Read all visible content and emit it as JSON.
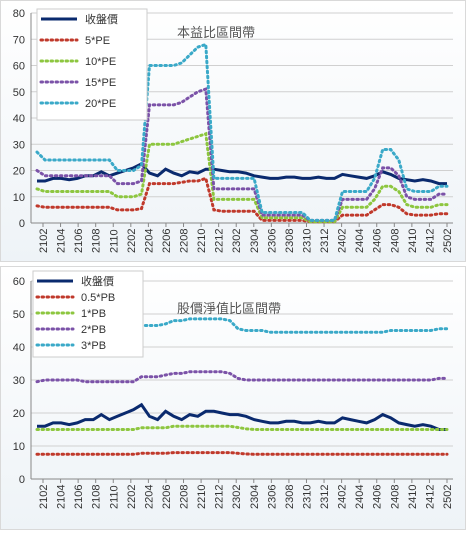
{
  "chart_data": [
    {
      "type": "line",
      "title": "本益比區間帶",
      "ylim": [
        0,
        80
      ],
      "yticks": [
        0,
        10,
        20,
        30,
        40,
        50,
        60,
        70,
        80
      ],
      "x_tick_labels": [
        "2102",
        "2104",
        "2106",
        "2108",
        "2110",
        "2202",
        "2204",
        "2206",
        "2208",
        "2210",
        "2212",
        "2302",
        "2304",
        "2306",
        "2308",
        "2310",
        "2312",
        "2402",
        "2404",
        "2406",
        "2408",
        "2410",
        "2412",
        "2502"
      ],
      "grid": true,
      "legend": "top-left",
      "series": [
        {
          "name": "收盤價",
          "color": "#0a2a6e",
          "style": "solid",
          "values": [
            16,
            16,
            17,
            17,
            16.5,
            17,
            18,
            18,
            19.5,
            18,
            19,
            20,
            21,
            22.5,
            19,
            18,
            20.5,
            19,
            18,
            19.5,
            19,
            20.5,
            20.5,
            20,
            19.5,
            19.5,
            19,
            18,
            17.5,
            17,
            17,
            17.5,
            17.5,
            17,
            17,
            17.5,
            17,
            17,
            18.5,
            18,
            17.5,
            17,
            18,
            19.5,
            18.5,
            17,
            16.5,
            16,
            16.5,
            16,
            15,
            15
          ]
        },
        {
          "name": "5*PE",
          "color": "#c0392b",
          "style": "dotted",
          "values": [
            6.5,
            6,
            6,
            6,
            6,
            6,
            6,
            6,
            6,
            6,
            5,
            5,
            5,
            5.5,
            15,
            15,
            15,
            15,
            15.5,
            16,
            16,
            17,
            5,
            4.5,
            4.5,
            4.5,
            4.5,
            4.5,
            1,
            1,
            1,
            1,
            1,
            1,
            0.5,
            0.5,
            0.5,
            0.5,
            3,
            3,
            3,
            3,
            5,
            7,
            7,
            6,
            3.5,
            3,
            3,
            3,
            3.5,
            3.5
          ]
        },
        {
          "name": "10*PE",
          "color": "#8dc63f",
          "style": "dotted",
          "values": [
            13,
            12,
            12,
            12,
            12,
            12,
            12,
            12,
            12,
            12,
            10,
            10,
            10,
            11,
            30,
            30,
            30,
            30,
            31,
            32,
            33,
            34,
            9,
            9,
            9,
            9,
            9,
            9,
            2,
            2,
            2,
            2,
            2,
            2,
            0.5,
            0.5,
            0.5,
            0.5,
            6,
            6,
            6,
            6,
            9,
            14,
            14,
            12,
            7,
            6,
            6,
            6,
            7,
            7
          ]
        },
        {
          "name": "15*PE",
          "color": "#7b52a8",
          "style": "dotted",
          "values": [
            20,
            18,
            18,
            18,
            18,
            18,
            18,
            18,
            18,
            18,
            15,
            15,
            15,
            16,
            45,
            45,
            45,
            45,
            46,
            48,
            50,
            51,
            13,
            13,
            13,
            13,
            13,
            13,
            3,
            3,
            3,
            3,
            3,
            3,
            1,
            1,
            1,
            1,
            9,
            9,
            9,
            9,
            13,
            21,
            21,
            18,
            10,
            9,
            9,
            9,
            11,
            11
          ]
        },
        {
          "name": "20*PE",
          "color": "#3aa9c8",
          "style": "dotted",
          "values": [
            27,
            24,
            24,
            24,
            24,
            24,
            24,
            24,
            24,
            24,
            20,
            20,
            20,
            22,
            60,
            60,
            60,
            60,
            61,
            64,
            67,
            68,
            17,
            17,
            17,
            17,
            17,
            17,
            4,
            4,
            4,
            4,
            4,
            4,
            1,
            1,
            1,
            1,
            12,
            12,
            12,
            12,
            17,
            28,
            28,
            24,
            13,
            12,
            12,
            12,
            14,
            14
          ]
        }
      ]
    },
    {
      "type": "line",
      "title": "股價淨值比區間帶",
      "ylim": [
        0,
        60
      ],
      "yticks": [
        0,
        10,
        20,
        30,
        40,
        50,
        60
      ],
      "x_tick_labels": [
        "2102",
        "2104",
        "2106",
        "2108",
        "2110",
        "2202",
        "2204",
        "2206",
        "2208",
        "2210",
        "2212",
        "2302",
        "2304",
        "2306",
        "2308",
        "2310",
        "2312",
        "2402",
        "2404",
        "2406",
        "2408",
        "2410",
        "2412",
        "2502"
      ],
      "grid": true,
      "legend": "top-left",
      "series": [
        {
          "name": "收盤價",
          "color": "#0a2a6e",
          "style": "solid",
          "values": [
            16,
            16,
            17,
            17,
            16.5,
            17,
            18,
            18,
            19.5,
            18,
            19,
            20,
            21,
            22.5,
            19,
            18,
            20.5,
            19,
            18,
            19.5,
            19,
            20.5,
            20.5,
            20,
            19.5,
            19.5,
            19,
            18,
            17.5,
            17,
            17,
            17.5,
            17.5,
            17,
            17,
            17.5,
            17,
            17,
            18.5,
            18,
            17.5,
            17,
            18,
            19.5,
            18.5,
            17,
            16.5,
            16,
            16.5,
            16,
            15,
            15
          ]
        },
        {
          "name": "0.5*PB",
          "color": "#c0392b",
          "style": "dotted",
          "values": [
            7.5,
            7.5,
            7.5,
            7.5,
            7.5,
            7.5,
            7.5,
            7.5,
            7.5,
            7.5,
            7.5,
            7.5,
            7.5,
            7.8,
            7.8,
            7.8,
            7.8,
            8,
            8,
            8,
            8,
            8,
            8,
            8,
            8,
            7.8,
            7.6,
            7.5,
            7.5,
            7.5,
            7.5,
            7.5,
            7.5,
            7.5,
            7.5,
            7.5,
            7.5,
            7.5,
            7.5,
            7.5,
            7.5,
            7.5,
            7.5,
            7.5,
            7.5,
            7.5,
            7.5,
            7.5,
            7.5,
            7.5,
            7.5,
            7.5
          ]
        },
        {
          "name": "1*PB",
          "color": "#8dc63f",
          "style": "dotted",
          "values": [
            15,
            15,
            15,
            15,
            15,
            15,
            15,
            15,
            15,
            15,
            15,
            15,
            15,
            15.5,
            15.5,
            15.5,
            15.5,
            16,
            16,
            16,
            16,
            16,
            16,
            16,
            16,
            15.6,
            15.2,
            15,
            15,
            15,
            15,
            15,
            15,
            15,
            15,
            15,
            15,
            15,
            15,
            15,
            15,
            15,
            15,
            15,
            15,
            15,
            15,
            15,
            15,
            15,
            15,
            15
          ]
        },
        {
          "name": "2*PB",
          "color": "#7b52a8",
          "style": "dotted",
          "values": [
            29.5,
            30,
            30,
            30,
            30,
            30,
            29.5,
            29.5,
            29.5,
            29.5,
            29.5,
            29.5,
            29.5,
            31,
            31,
            31,
            31.5,
            32,
            32,
            32.5,
            32.5,
            32.5,
            32.5,
            32.5,
            32,
            30.5,
            30,
            30,
            30,
            30,
            30,
            30,
            30,
            30,
            30,
            30,
            30,
            30,
            30,
            30,
            30,
            30,
            30,
            30,
            30,
            30,
            30,
            30,
            30,
            30,
            30.5,
            30.5
          ]
        },
        {
          "name": "3*PB",
          "color": "#3aa9c8",
          "style": "dotted",
          "values": [
            44.5,
            44.5,
            44.5,
            44.5,
            44.5,
            44.5,
            44.5,
            44.5,
            44.5,
            44.5,
            44.5,
            45,
            45,
            46.5,
            46.5,
            46.5,
            47,
            48,
            48,
            48.5,
            48.5,
            48.5,
            48.5,
            48.5,
            48,
            45.5,
            45,
            45,
            45,
            44.5,
            44.5,
            44.5,
            44.5,
            44.5,
            44.5,
            44.5,
            44.5,
            44.5,
            44.5,
            44.5,
            44.5,
            44.5,
            44.5,
            44.5,
            45,
            45,
            45,
            45,
            45,
            45,
            45.5,
            45.5
          ]
        }
      ]
    }
  ]
}
